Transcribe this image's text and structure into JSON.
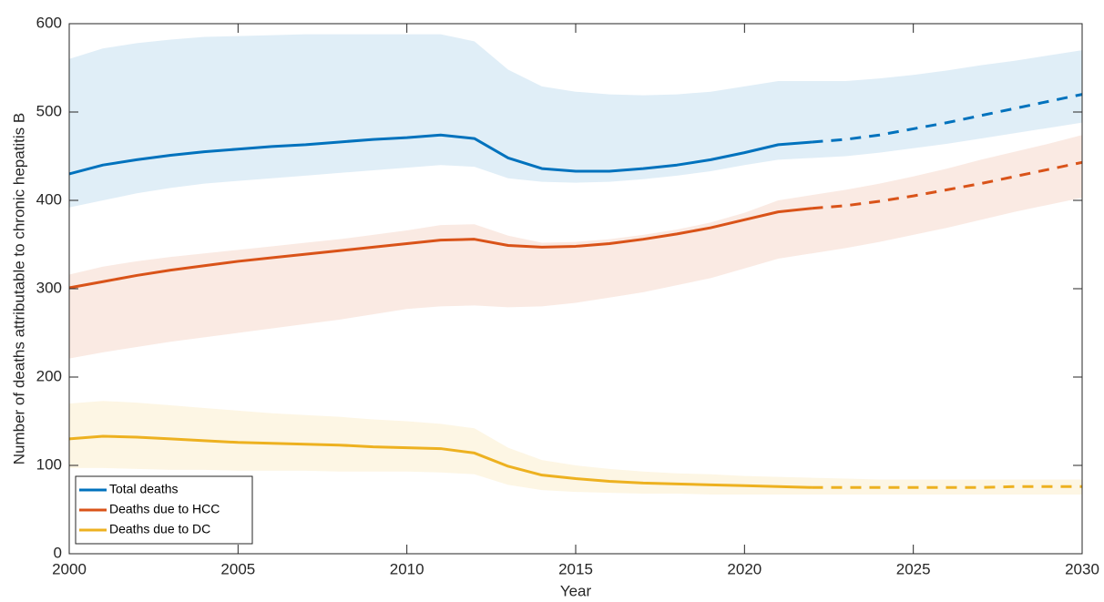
{
  "chart_data": {
    "type": "line",
    "xlabel": "Year",
    "ylabel": "Number of deaths attributable to chronic hepatitis B",
    "x": [
      2000,
      2001,
      2002,
      2003,
      2004,
      2005,
      2006,
      2007,
      2008,
      2009,
      2010,
      2011,
      2012,
      2013,
      2014,
      2015,
      2016,
      2017,
      2018,
      2019,
      2020,
      2021,
      2022,
      2023,
      2024,
      2025,
      2026,
      2027,
      2028,
      2029,
      2030
    ],
    "projection_from": 2022,
    "series": [
      {
        "name": "Total deaths",
        "color": "#0072BD",
        "values": [
          430,
          440,
          446,
          451,
          455,
          458,
          461,
          463,
          466,
          469,
          471,
          474,
          470,
          448,
          436,
          433,
          433,
          436,
          440,
          446,
          454,
          463,
          466,
          469,
          474,
          481,
          488,
          496,
          504,
          512,
          520
        ],
        "upper": [
          560,
          572,
          578,
          582,
          585,
          586,
          587,
          588,
          588,
          588,
          588,
          588,
          580,
          548,
          529,
          523,
          520,
          519,
          520,
          523,
          529,
          535,
          535,
          535,
          538,
          542,
          547,
          553,
          558,
          564,
          570
        ],
        "lower": [
          392,
          400,
          408,
          414,
          419,
          422,
          425,
          428,
          431,
          434,
          437,
          440,
          438,
          425,
          421,
          420,
          421,
          424,
          428,
          433,
          440,
          446,
          448,
          450,
          454,
          459,
          464,
          470,
          476,
          482,
          488
        ]
      },
      {
        "name": "Deaths due to HCC",
        "color": "#D95319",
        "values": [
          301,
          308,
          315,
          321,
          326,
          331,
          335,
          339,
          343,
          347,
          351,
          355,
          356,
          349,
          347,
          348,
          351,
          356,
          362,
          369,
          378,
          387,
          391,
          394,
          399,
          405,
          412,
          419,
          427,
          435,
          443
        ],
        "upper": [
          316,
          325,
          331,
          336,
          340,
          344,
          348,
          352,
          356,
          361,
          366,
          372,
          373,
          360,
          352,
          353,
          356,
          361,
          367,
          375,
          386,
          400,
          406,
          412,
          419,
          427,
          436,
          446,
          455,
          464,
          474
        ],
        "lower": [
          221,
          228,
          234,
          240,
          245,
          250,
          255,
          260,
          265,
          271,
          277,
          280,
          281,
          279,
          280,
          284,
          290,
          296,
          304,
          312,
          323,
          334,
          340,
          346,
          353,
          361,
          369,
          378,
          387,
          395,
          403
        ]
      },
      {
        "name": "Deaths due to DC",
        "color": "#EDB120",
        "values": [
          130,
          133,
          132,
          130,
          128,
          126,
          125,
          124,
          123,
          121,
          120,
          119,
          114,
          99,
          89,
          85,
          82,
          80,
          79,
          78,
          77,
          76,
          75,
          75,
          75,
          75,
          75,
          75,
          76,
          76,
          76
        ],
        "upper": [
          170,
          173,
          171,
          168,
          165,
          162,
          159,
          157,
          155,
          152,
          150,
          147,
          142,
          120,
          106,
          100,
          96,
          93,
          91,
          90,
          88,
          87,
          86,
          85,
          84,
          84,
          84,
          84,
          84,
          84,
          84
        ],
        "lower": [
          97,
          97,
          96,
          95,
          95,
          94,
          94,
          94,
          93,
          93,
          93,
          92,
          90,
          78,
          72,
          70,
          69,
          68,
          68,
          67,
          67,
          67,
          67,
          67,
          67,
          67,
          67,
          67,
          67,
          67,
          67
        ]
      }
    ],
    "xlim": [
      2000,
      2030
    ],
    "xticks": [
      2000,
      2005,
      2010,
      2015,
      2020,
      2025,
      2030
    ],
    "ylim": [
      0,
      600
    ],
    "yticks": [
      0,
      100,
      200,
      300,
      400,
      500,
      600
    ],
    "grid": false,
    "legend": "lower left"
  }
}
